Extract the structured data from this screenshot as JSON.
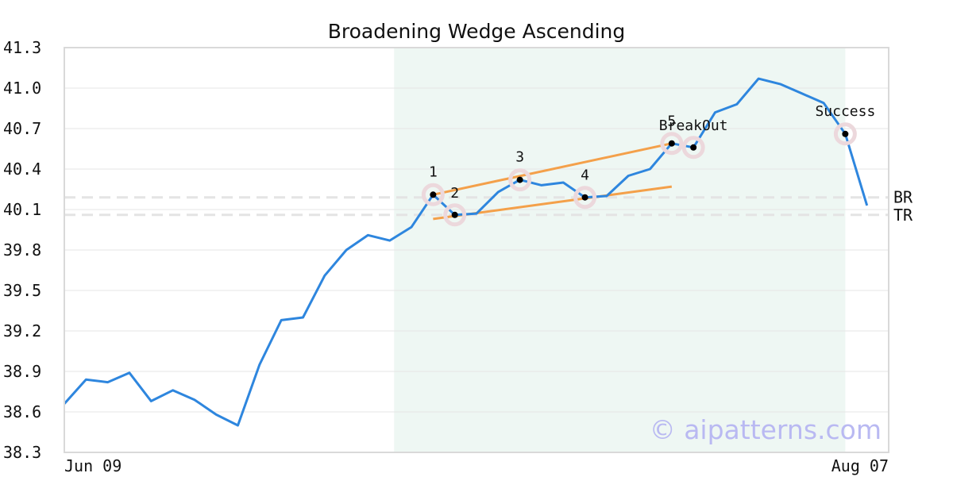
{
  "chart_data": {
    "type": "line",
    "title": "Broadening Wedge Ascending",
    "xlabel": "",
    "ylabel": "",
    "ylim": [
      38.3,
      41.3
    ],
    "xlim": [
      0,
      38
    ],
    "y_ticks": [
      "38.3",
      "38.6",
      "38.9",
      "39.2",
      "39.5",
      "39.8",
      "40.1",
      "40.4",
      "40.7",
      "41.0",
      "41.3"
    ],
    "x_tick_labels": [
      {
        "x": 0,
        "label": "Jun 09"
      },
      {
        "x": 38,
        "label": "Aug 07"
      }
    ],
    "grid": "horizontal",
    "colors": {
      "price": "#2e86de",
      "trendline": "#f4a04a",
      "highlight": "#eef7f3",
      "marker_halo": "#ecd8dc",
      "reference": "#e4e4e4",
      "watermark": "#b9b9f2"
    },
    "series": [
      {
        "values": [
          38.66,
          38.84,
          38.82,
          38.89,
          38.68,
          38.76,
          38.69,
          38.58,
          38.5,
          38.95,
          39.28,
          39.3,
          39.61,
          39.8,
          39.91,
          39.87,
          39.97,
          40.21,
          40.06,
          40.07,
          40.23,
          40.32,
          40.28,
          40.3,
          40.19,
          40.2,
          40.35,
          40.4,
          40.59,
          40.56,
          40.82,
          40.88,
          41.07,
          41.03,
          40.96,
          40.89,
          40.66,
          40.13
        ]
      }
    ],
    "highlight_range": [
      15.2,
      36.0
    ],
    "trendlines": [
      {
        "from": [
          17,
          40.21
        ],
        "to": [
          28,
          40.59
        ]
      },
      {
        "from": [
          17,
          40.03
        ],
        "to": [
          28,
          40.27
        ]
      }
    ],
    "reference_lines": [
      {
        "label": "BR",
        "y": 40.19
      },
      {
        "label": "TR",
        "y": 40.06
      }
    ],
    "annotations": [
      {
        "label": "1",
        "x": 17,
        "y": 40.21
      },
      {
        "label": "2",
        "x": 18,
        "y": 40.06
      },
      {
        "label": "3",
        "x": 21,
        "y": 40.32
      },
      {
        "label": "4",
        "x": 24,
        "y": 40.19
      },
      {
        "label": "5",
        "x": 28,
        "y": 40.59
      },
      {
        "label": "BreakOut",
        "x": 29,
        "y": 40.56
      },
      {
        "label": "Success",
        "x": 36,
        "y": 40.66
      }
    ],
    "watermark": "© aipatterns.com"
  }
}
